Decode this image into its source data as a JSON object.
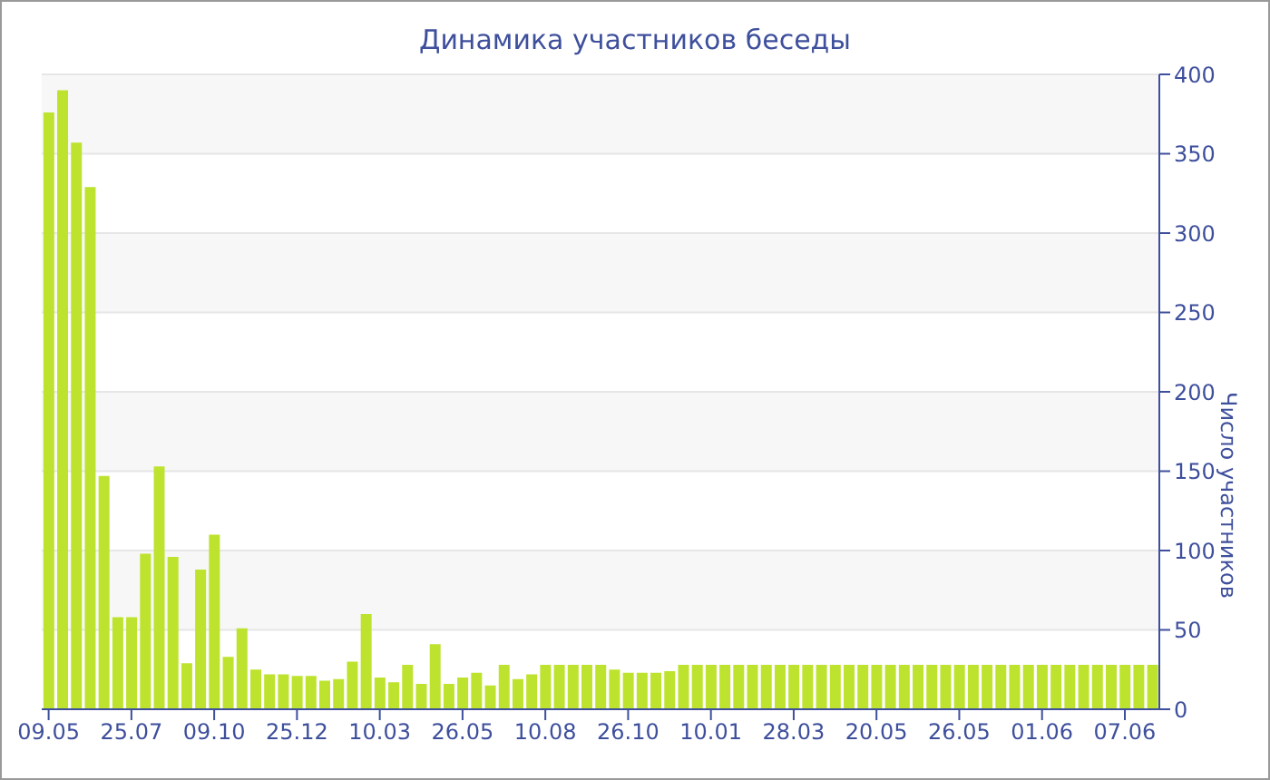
{
  "chart_data": {
    "type": "bar",
    "title": "Динамика участников беседы",
    "ylabel": "Число участников",
    "categories": [
      "09.05",
      null,
      null,
      null,
      null,
      null,
      "25.07",
      null,
      null,
      null,
      null,
      null,
      "09.10",
      null,
      null,
      null,
      null,
      null,
      "25.12",
      null,
      null,
      null,
      null,
      null,
      "10.03",
      null,
      null,
      null,
      null,
      null,
      "26.05",
      null,
      null,
      null,
      null,
      null,
      "10.08",
      null,
      null,
      null,
      null,
      null,
      "26.10",
      null,
      null,
      null,
      null,
      null,
      "10.01",
      null,
      null,
      null,
      null,
      null,
      "28.03",
      null,
      null,
      null,
      null,
      null,
      "20.05",
      null,
      null,
      null,
      null,
      null,
      "26.05",
      null,
      null,
      null,
      null,
      null,
      "01.06",
      null,
      null,
      null,
      null,
      null,
      "07.06",
      null,
      null
    ],
    "values": [
      376,
      390,
      357,
      329,
      147,
      58,
      58,
      98,
      153,
      96,
      29,
      88,
      110,
      33,
      51,
      25,
      22,
      22,
      21,
      21,
      18,
      19,
      30,
      60,
      20,
      17,
      28,
      16,
      41,
      16,
      20,
      23,
      15,
      28,
      19,
      22,
      28,
      28,
      28,
      28,
      28,
      25,
      23,
      23,
      23,
      24,
      28,
      28,
      28,
      28,
      28,
      28,
      28,
      28,
      28,
      28,
      28,
      28,
      28,
      28,
      28,
      28,
      28,
      28,
      28,
      28,
      28,
      28,
      28,
      28,
      28,
      28,
      28,
      28,
      28,
      28,
      28,
      28,
      28,
      28,
      28
    ],
    "color": "#bde32f",
    "ylim": [
      0,
      400
    ],
    "yticks": [
      0,
      50,
      100,
      150,
      200,
      250,
      300,
      350,
      400
    ],
    "grid": "y"
  }
}
